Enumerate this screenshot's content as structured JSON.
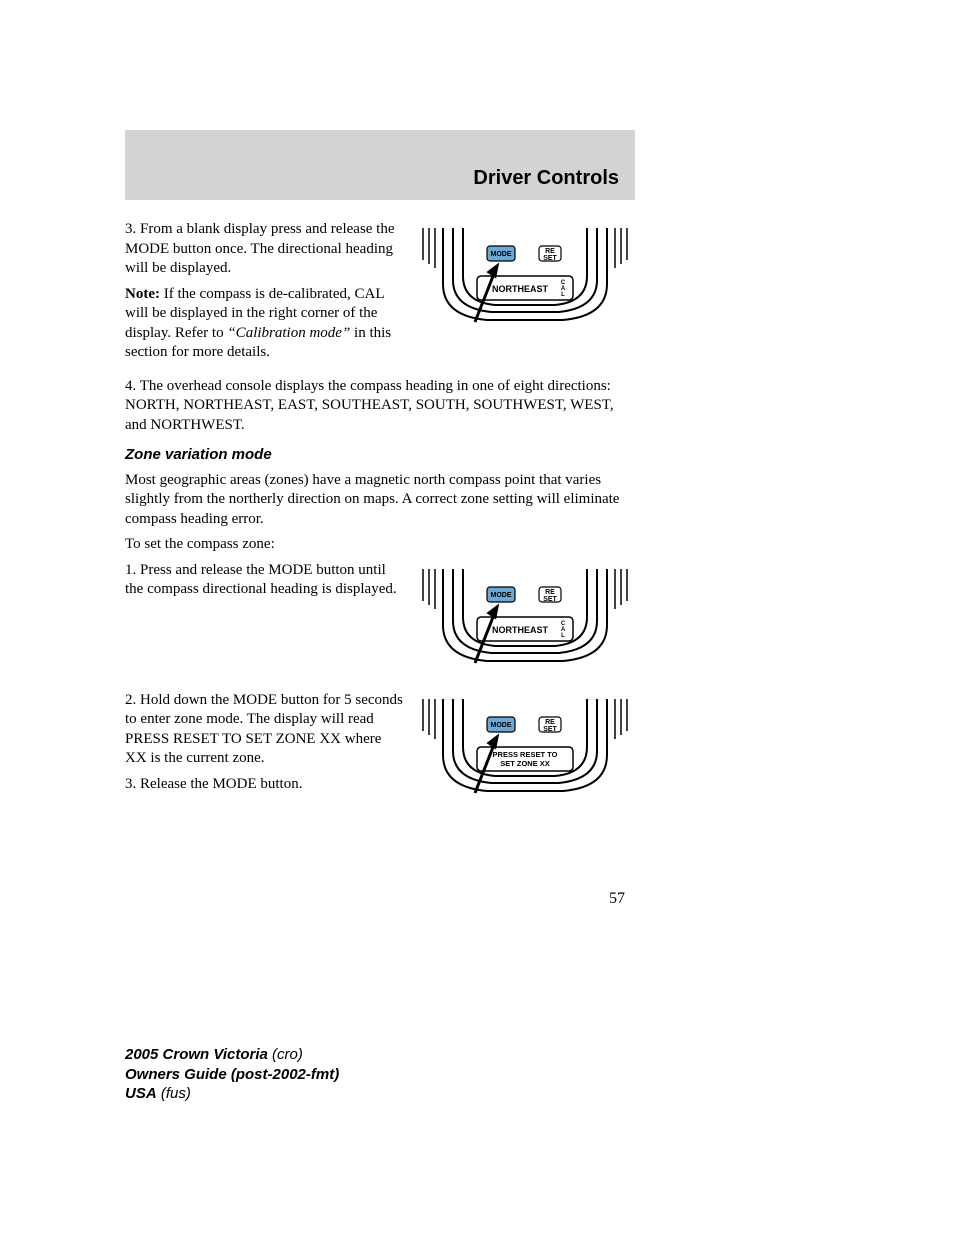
{
  "header": {
    "title": "Driver Controls"
  },
  "body": {
    "p1": "3. From a blank display press and release the MODE button once. The directional heading will be displayed.",
    "note_label": "Note:",
    "note_text": " If the compass is de-calibrated, CAL will be displayed in the right corner of the display. Refer to ",
    "note_ref": "“Calibration mode”",
    "note_tail": " in this section for more details.",
    "p2": "4. The overhead console displays the compass heading in one of eight directions: NORTH, NORTHEAST, EAST, SOUTHEAST, SOUTH, SOUTHWEST, WEST, and NORTHWEST.",
    "subhead1": "Zone variation mode",
    "p3": "Most geographic areas (zones) have a magnetic north compass point that varies slightly from the northerly direction on maps. A correct zone setting will eliminate compass heading error.",
    "p4": "To set the compass zone:",
    "p5": "1. Press and release the MODE button until the compass directional heading is displayed.",
    "p6": "2. Hold down the MODE button for 5 seconds to enter zone mode. The display will read PRESS RESET TO SET ZONE XX where XX is the current zone.",
    "p7": "3. Release the MODE button."
  },
  "figures": {
    "btn_mode": "MODE",
    "btn_reset_l1": "RE",
    "btn_reset_l2": "SET",
    "disp_northeast": "NORTHEAST",
    "cal_c": "C",
    "cal_a": "A",
    "cal_l": "L",
    "disp_zone_l1": "PRESS RESET TO",
    "disp_zone_l2": "SET ZONE XX",
    "stroke": "#000000",
    "mode_fill": "#6ba8d4"
  },
  "page_number": "57",
  "footer": {
    "l1a": "2005 Crown Victoria",
    "l1b": "(cro)",
    "l2": "Owners Guide (post-2002-fmt)",
    "l3a": "USA",
    "l3b": "(fus)"
  }
}
